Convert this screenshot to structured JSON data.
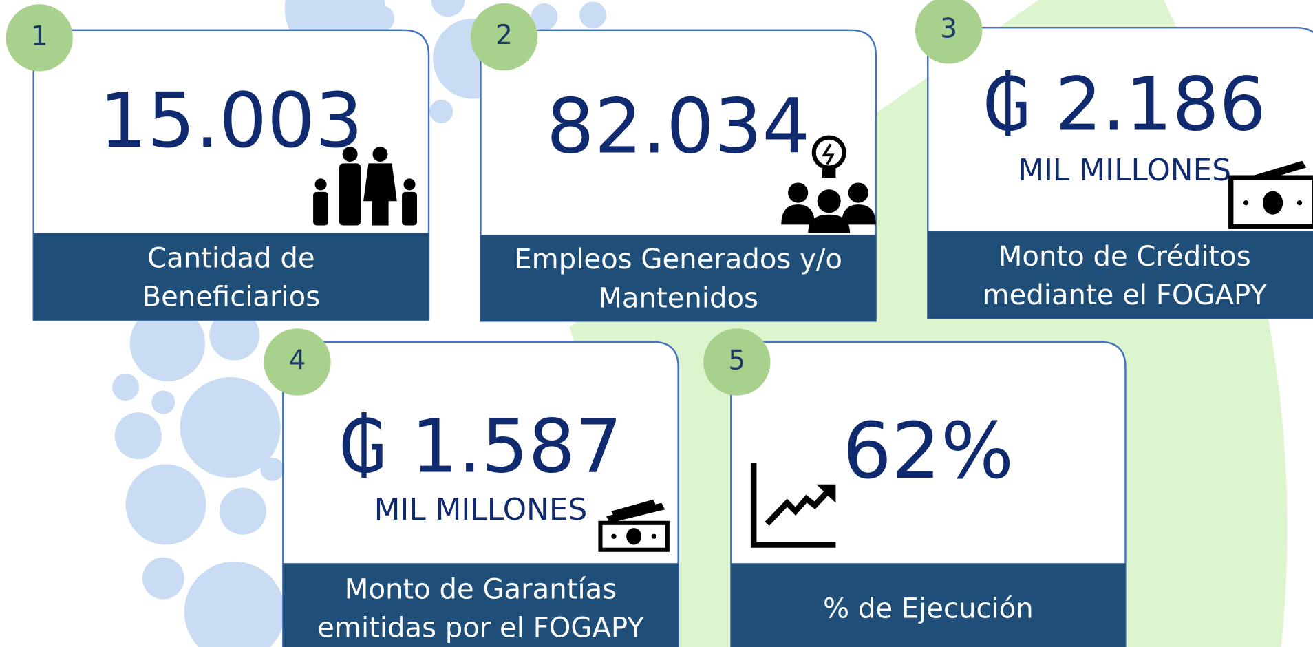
{
  "cards": [
    {
      "badge": "1",
      "value": "15.003",
      "label": [
        "Cantidad de",
        "Beneficiarios"
      ]
    },
    {
      "badge": "2",
      "value": "82.034",
      "label": [
        "Empleos Generados y/o",
        "Mantenidos"
      ]
    },
    {
      "badge": "3",
      "currency": "₲",
      "value": "2.186",
      "unit": "MIL MILLONES",
      "label": [
        "Monto de Créditos",
        "mediante el FOGAPY"
      ]
    },
    {
      "badge": "4",
      "currency": "₲",
      "value": "1.587",
      "unit": "MIL MILLONES",
      "label": [
        "Monto de Garantías",
        "emitidas por el FOGAPY"
      ]
    },
    {
      "badge": "5",
      "value": "62%",
      "label": [
        "% de Ejecución"
      ]
    }
  ]
}
